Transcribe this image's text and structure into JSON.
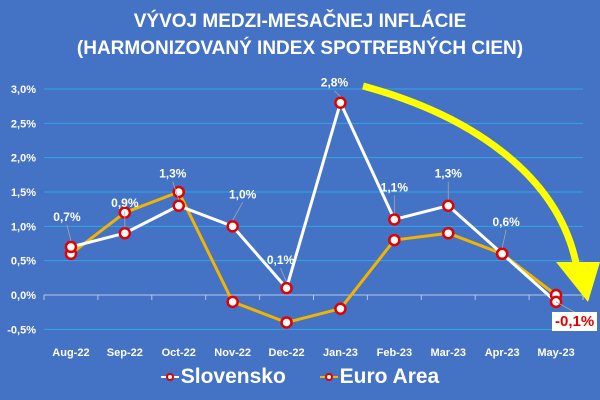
{
  "title": {
    "line1": "VÝVOJ MEDZI-MESAČNEJ INFLÁCIE",
    "line2": "(HARMONIZOVANÝ INDEX SPOTREBNÝCH CIEN)"
  },
  "colors": {
    "background": "#4472c4",
    "gridline": "#2ea6e8",
    "slovensko_line": "#ffffff",
    "euro_area_line": "#f2b400",
    "marker_border": "#e00000",
    "arrow": "#ffff00",
    "callout_text": "#e00000"
  },
  "legend": {
    "items": [
      {
        "label": "Slovensko"
      },
      {
        "label": "Euro Area"
      }
    ]
  },
  "callout": {
    "text": "-0,1%"
  },
  "chart_data": {
    "type": "line",
    "title": "VÝVOJ MEDZI-MESAČNEJ INFLÁCIE (HARMONIZOVANÝ INDEX SPOTREBNÝCH CIEN)",
    "xlabel": "",
    "ylabel": "",
    "categories": [
      "Aug-22",
      "Sep-22",
      "Oct-22",
      "Nov-22",
      "Dec-22",
      "Jan-23",
      "Feb-23",
      "Mar-23",
      "Apr-23",
      "May-23"
    ],
    "yticks": [
      "-0,5%",
      "0,0%",
      "0,5%",
      "1,0%",
      "1,5%",
      "2,0%",
      "2,5%",
      "3,0%"
    ],
    "ylim": [
      -0.5,
      3.0
    ],
    "grid": true,
    "legend_position": "bottom",
    "series": [
      {
        "name": "Slovensko",
        "values": [
          0.7,
          0.9,
          1.3,
          1.0,
          0.1,
          2.8,
          1.1,
          1.3,
          0.6,
          -0.1
        ],
        "labels": [
          "0,7%",
          "0,9%",
          "1,3%",
          "1,0%",
          "0,1%",
          "2,8%",
          "1,1%",
          "1,3%",
          "0,6%",
          "-0,1%"
        ]
      },
      {
        "name": "Euro Area",
        "values": [
          0.6,
          1.2,
          1.5,
          -0.1,
          -0.4,
          -0.2,
          0.8,
          0.9,
          0.6,
          0.0
        ]
      }
    ],
    "annotations": [
      "Yellow curved arrow from 2,8% (Jan-23) peak down to -0,1% (May-23)",
      "-0,1% highlighted in red on white box"
    ]
  }
}
